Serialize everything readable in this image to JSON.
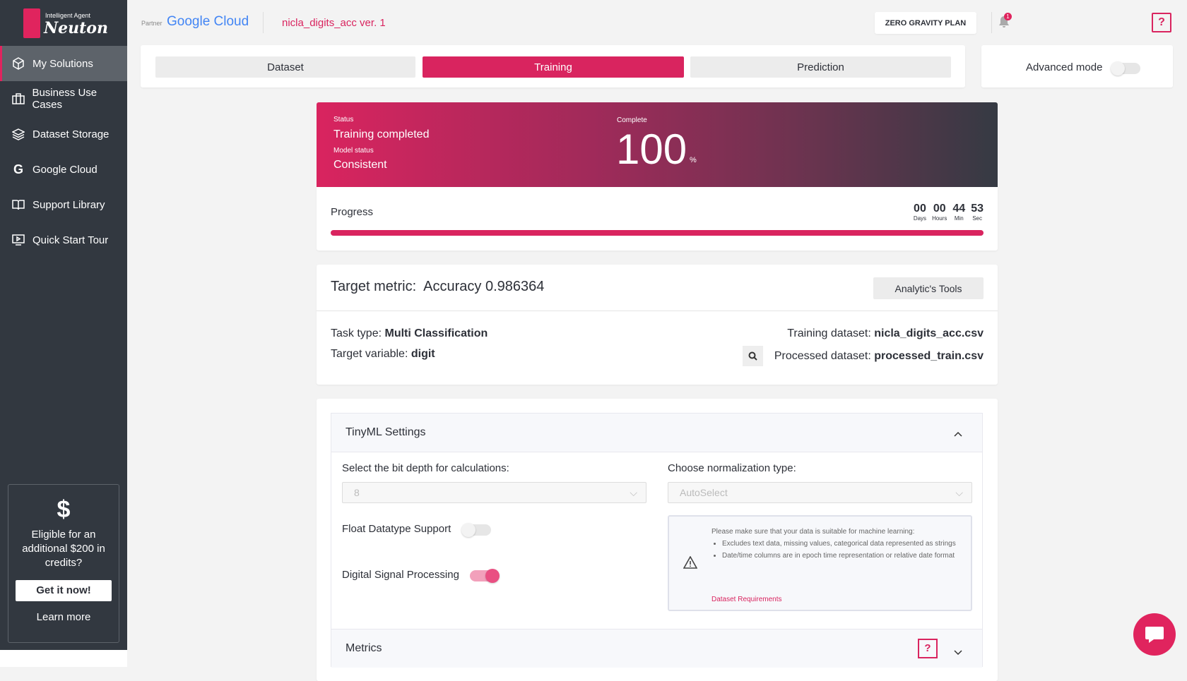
{
  "brand": {
    "tagline": "Intelligent Agent",
    "name": "Neuton",
    "partner_label": "Partner",
    "partner_name": "Google Cloud"
  },
  "header": {
    "solution_title": "nicla_digits_acc ver. 1",
    "plan_button": "ZERO GRAVITY PLAN",
    "notification_count": "1",
    "help": "?"
  },
  "sidebar": {
    "items": [
      {
        "label": "My Solutions",
        "icon": "cube-icon"
      },
      {
        "label": "Business Use Cases",
        "icon": "briefcase-icon"
      },
      {
        "label": "Dataset Storage",
        "icon": "layers-icon"
      },
      {
        "label": "Google Cloud",
        "icon": "google-icon"
      },
      {
        "label": "Support Library",
        "icon": "book-icon"
      },
      {
        "label": "Quick Start Tour",
        "icon": "play-screen-icon"
      }
    ],
    "credit": {
      "symbol": "$",
      "text": "Eligible for an additional $200 in credits?",
      "button": "Get it now!",
      "link": "Learn more"
    }
  },
  "tabs": [
    {
      "label": "Dataset"
    },
    {
      "label": "Training"
    },
    {
      "label": "Prediction"
    }
  ],
  "advanced_mode": {
    "label": "Advanced mode",
    "enabled": false
  },
  "status": {
    "status_label": "Status",
    "status_value": "Training completed",
    "model_label": "Model status",
    "model_value": "Consistent",
    "complete_label": "Complete",
    "complete_value": "100",
    "percent_sign": "%"
  },
  "progress": {
    "label": "Progress",
    "percent": 100,
    "timer": [
      {
        "value": "00",
        "unit": "Days"
      },
      {
        "value": "00",
        "unit": "Hours"
      },
      {
        "value": "44",
        "unit": "Min"
      },
      {
        "value": "53",
        "unit": "Sec"
      }
    ]
  },
  "metric": {
    "title": "Target metric:",
    "value": "Accuracy 0.986364",
    "tools_button": "Analytic's Tools",
    "task_type_label": "Task type:",
    "task_type": "Multi Classification",
    "target_label": "Target variable:",
    "target": "digit",
    "training_label": "Training dataset:",
    "training": "nicla_digits_acc.csv",
    "processed_label": "Processed dataset:",
    "processed": "processed_train.csv"
  },
  "tinyml": {
    "title": "TinyML Settings",
    "bit_depth_label": "Select the bit depth for calculations:",
    "bit_depth": "8",
    "norm_label": "Choose normalization type:",
    "norm": "AutoSelect",
    "float_label": "Float Datatype Support",
    "float_enabled": false,
    "dsp_label": "Digital Signal Processing",
    "dsp_enabled": true,
    "notice": {
      "intro": "Please make sure that your data is suitable for machine learning:",
      "bullets": [
        "Excludes text data, missing values, categorical data represented as strings",
        "Date/time columns are in epoch time representation or relative date format"
      ],
      "link": "Dataset Requirements"
    }
  },
  "metrics_section": {
    "title": "Metrics",
    "help": "?"
  },
  "colors": {
    "accent": "#d9245f",
    "sidebar": "#323840"
  }
}
